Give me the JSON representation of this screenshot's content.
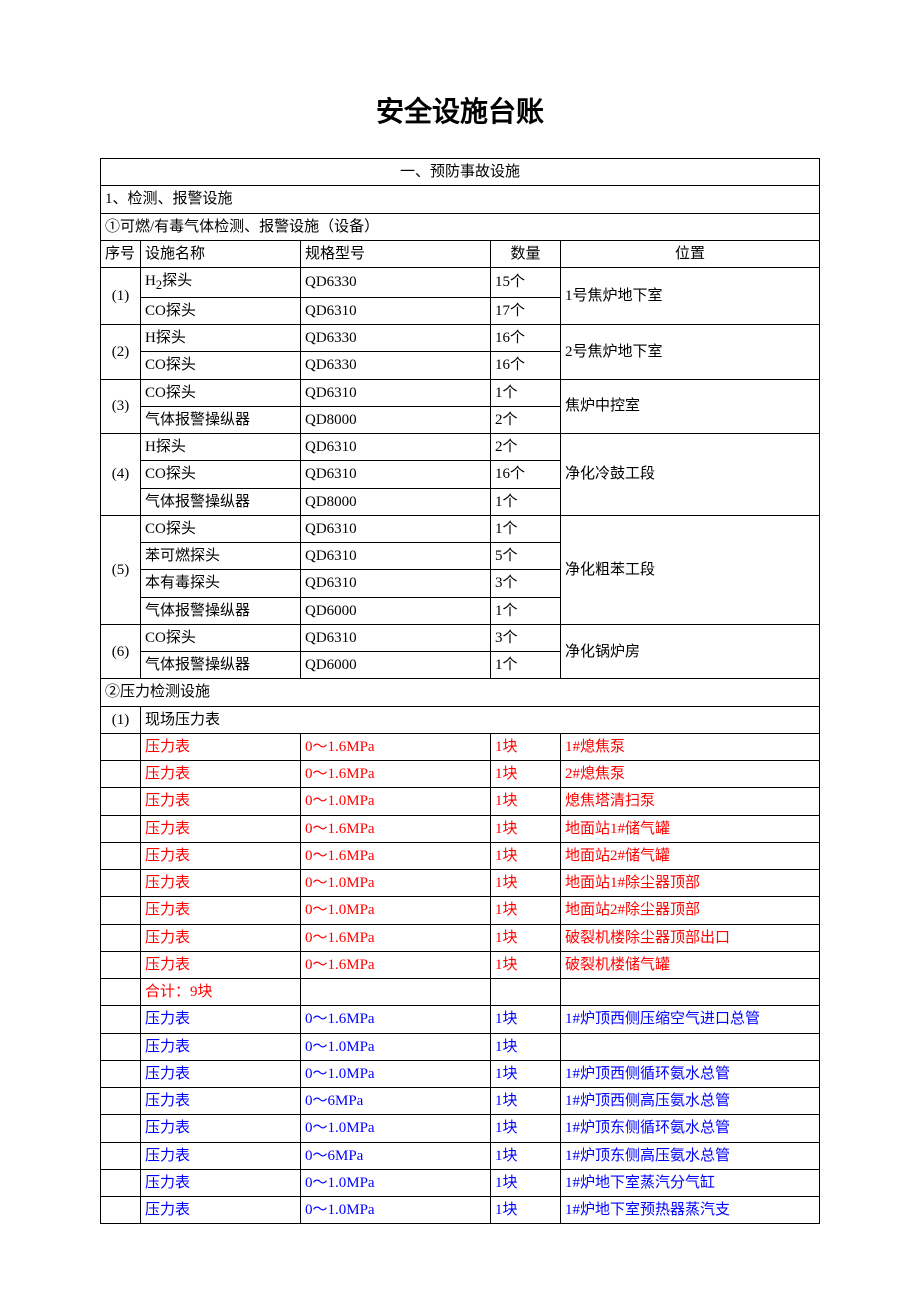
{
  "title": "安全设施台账",
  "section_heading": "一、预防事故设施",
  "sub1": "1、检测、报警设施",
  "sub1_1": "①可燃/有毒气体检测、报警设施（设备）",
  "columns": {
    "c1": "序号",
    "c2": "设施名称",
    "c3": "规格型号",
    "c4": "数量",
    "c5": "位置"
  },
  "gas": {
    "g1": {
      "no": "(1)",
      "loc": "1号焦炉地下室",
      "r1": {
        "name_html": "H<sub>2</sub>探头",
        "spec": "QD6330",
        "qty": "15个"
      },
      "r2": {
        "name": "CO探头",
        "spec": "QD6310",
        "qty": "17个"
      }
    },
    "g2": {
      "no": "(2)",
      "loc": "2号焦炉地下室",
      "r1": {
        "name": "H探头",
        "spec": "QD6330",
        "qty": "16个"
      },
      "r2": {
        "name": "CO探头",
        "spec": "QD6330",
        "qty": "16个"
      }
    },
    "g3": {
      "no": "(3)",
      "loc": "焦炉中控室",
      "r1": {
        "name": "CO探头",
        "spec": "QD6310",
        "qty": "1个"
      },
      "r2": {
        "name": "气体报警操纵器",
        "spec": "QD8000",
        "qty": "2个"
      }
    },
    "g4": {
      "no": "(4)",
      "loc": "净化冷鼓工段",
      "r1": {
        "name": "H探头",
        "spec": "QD6310",
        "qty": "2个"
      },
      "r2": {
        "name": "CO探头",
        "spec": "QD6310",
        "qty": "16个"
      },
      "r3": {
        "name": "气体报警操纵器",
        "spec": "QD8000",
        "qty": "1个"
      }
    },
    "g5": {
      "no": "(5)",
      "loc": "净化粗苯工段",
      "r1": {
        "name": "CO探头",
        "spec": "QD6310",
        "qty": "1个"
      },
      "r2": {
        "name": "苯可燃探头",
        "spec": "QD6310",
        "qty": "5个"
      },
      "r3": {
        "name": "本有毒探头",
        "spec": "QD6310",
        "qty": "3个"
      },
      "r4": {
        "name": "气体报警操纵器",
        "spec": "QD6000",
        "qty": "1个"
      }
    },
    "g6": {
      "no": "(6)",
      "loc": "净化锅炉房",
      "r1": {
        "name": "CO探头",
        "spec": "QD6310",
        "qty": "3个"
      },
      "r2": {
        "name": "气体报警操纵器",
        "spec": "QD6000",
        "qty": "1个"
      }
    }
  },
  "sub2": "②压力检测设施",
  "pressure_hdr": {
    "no": "(1)",
    "label": "现场压力表"
  },
  "red_rows": [
    {
      "name": "压力表",
      "spec": "0～1.6MPa",
      "qty": "1块",
      "loc": "1#熄焦泵"
    },
    {
      "name": "压力表",
      "spec": "0～1.6MPa",
      "qty": "1块",
      "loc": "2#熄焦泵"
    },
    {
      "name": "压力表",
      "spec": "0～1.0MPa",
      "qty": "1块",
      "loc": "熄焦塔清扫泵"
    },
    {
      "name": "压力表",
      "spec": "0～1.6MPa",
      "qty": "1块",
      "loc": "地面站1#储气罐"
    },
    {
      "name": "压力表",
      "spec": "0～1.6MPa",
      "qty": "1块",
      "loc": "地面站2#储气罐"
    },
    {
      "name": "压力表",
      "spec": "0～1.0MPa",
      "qty": "1块",
      "loc": "地面站1#除尘器顶部"
    },
    {
      "name": "压力表",
      "spec": "0～1.0MPa",
      "qty": "1块",
      "loc": "地面站2#除尘器顶部"
    },
    {
      "name": "压力表",
      "spec": "0～1.6MPa",
      "qty": "1块",
      "loc": "破裂机楼除尘器顶部出口"
    },
    {
      "name": "压力表",
      "spec": "0～1.6MPa",
      "qty": "1块",
      "loc": "破裂机楼储气罐"
    }
  ],
  "red_total": "合计：9块",
  "blue_rows": [
    {
      "name": "压力表",
      "spec": "0～1.6MPa",
      "qty": "1块",
      "loc": " 1#炉顶西侧压缩空气进口总管"
    },
    {
      "name": "压力表",
      "spec": "0～1.0MPa",
      "qty": "1块",
      "loc": ""
    },
    {
      "name": "压力表",
      "spec": "0～1.0MPa",
      "qty": "1块",
      "loc": "1#炉顶西侧循环氨水总管"
    },
    {
      "name": "压力表",
      "spec": "0～6MPa",
      "qty": "1块",
      "loc": "1#炉顶西侧高压氨水总管"
    },
    {
      "name": "压力表",
      "spec": "0～1.0MPa",
      "qty": "1块",
      "loc": "1#炉顶东侧循环氨水总管"
    },
    {
      "name": "压力表",
      "spec": "0～6MPa",
      "qty": "1块",
      "loc": "1#炉顶东侧高压氨水总管"
    },
    {
      "name": "压力表",
      "spec": "0～1.0MPa",
      "qty": "1块",
      "loc": "1#炉地下室蒸汽分气缸"
    },
    {
      "name": "压力表",
      "spec": "0～1.0MPa",
      "qty": "1块",
      "loc": "1#炉地下室预热器蒸汽支"
    }
  ],
  "colors": {
    "text": "#000000",
    "red": "#ff0000",
    "blue": "#0000ff",
    "border": "#000000",
    "bg": "#ffffff"
  }
}
